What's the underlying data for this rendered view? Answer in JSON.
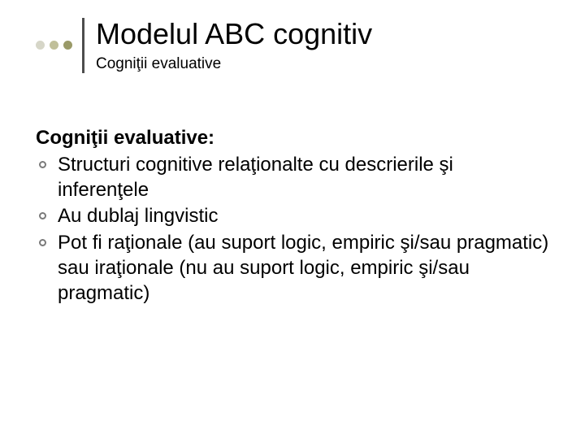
{
  "slide": {
    "background_color": "#ffffff",
    "header": {
      "dots": [
        {
          "color": "#d6d6c8"
        },
        {
          "color": "#c0bf9a"
        },
        {
          "color": "#9a9a68"
        }
      ],
      "divider_color": "#4d4d4d",
      "title": "Modelul ABC cognitiv",
      "title_fontsize": 36,
      "title_color": "#000000",
      "subtitle": "Cogniţii evaluative",
      "subtitle_fontsize": 19,
      "subtitle_color": "#000000"
    },
    "body": {
      "heading": "Cogniţii evaluative:",
      "heading_fontsize": 24,
      "heading_weight": 700,
      "bullet_fontsize": 24,
      "bullet_marker_color": "#7a7a7a",
      "bullets": [
        "Structuri cognitive relaţionalte cu descrierile şi inferenţele",
        "Au dublaj lingvistic",
        "Pot fi raţionale (au suport logic, empiric şi/sau pragmatic) sau iraţionale (nu au suport logic, empiric şi/sau pragmatic)"
      ]
    }
  }
}
